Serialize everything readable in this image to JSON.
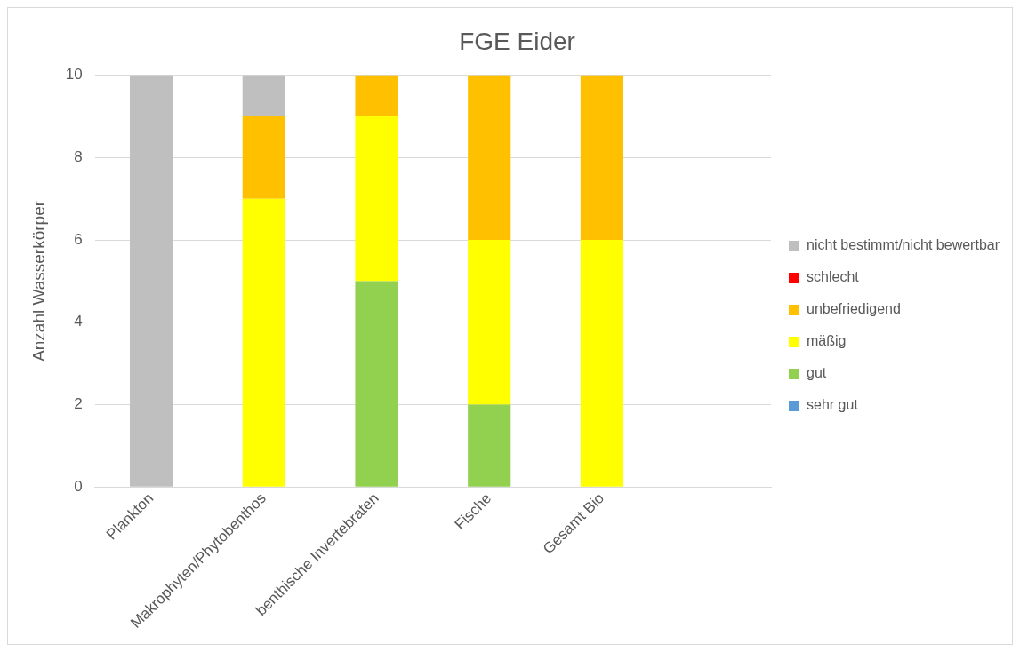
{
  "chart_data": {
    "type": "bar",
    "title": "FGE Eider",
    "ylabel": "Anzahl Wasserkörper",
    "categories": [
      "Plankton",
      "Makrophyten/Phytobenthos",
      "benthische Invertebraten",
      "Fische",
      "Gesamt Bio",
      null
    ],
    "series": [
      {
        "name": "sehr gut",
        "color": "#5b9bd5",
        "values": [
          0,
          0,
          0,
          0,
          0,
          null
        ]
      },
      {
        "name": "gut",
        "color": "#92d050",
        "values": [
          0,
          0,
          5,
          2,
          0,
          null
        ]
      },
      {
        "name": "mäßig",
        "color": "#ffff00",
        "values": [
          0,
          7,
          4,
          4,
          6,
          null
        ]
      },
      {
        "name": "unbefriedigend",
        "color": "#ffc000",
        "values": [
          0,
          2,
          1,
          4,
          4,
          null
        ]
      },
      {
        "name": "schlecht",
        "color": "#ff0000",
        "values": [
          0,
          0,
          0,
          0,
          0,
          null
        ]
      },
      {
        "name": "nicht bestimmt/nicht bewertbar",
        "color": "#bfbfbf",
        "values": [
          10,
          1,
          0,
          0,
          0,
          null
        ]
      }
    ],
    "stacked": true,
    "ylim": [
      0,
      10
    ],
    "yticks": [
      0,
      2,
      4,
      6,
      8,
      10
    ],
    "grid": "y",
    "legend": "right"
  }
}
